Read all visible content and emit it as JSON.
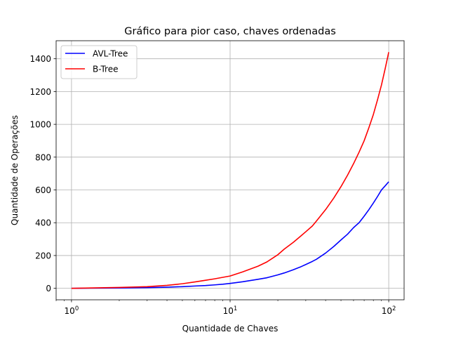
{
  "chart_data": {
    "type": "line",
    "title": "Gráfico para pior caso, chaves ordenadas",
    "xlabel": "Quantidade de Chaves",
    "ylabel": "Quantidade de Operações",
    "xscale": "log",
    "xlim": [
      0.8,
      125
    ],
    "ylim": [
      -70,
      1510
    ],
    "grid": true,
    "legend_position": "top-left",
    "x_ticks": [
      {
        "value": 1,
        "base": "10",
        "exp": "0"
      },
      {
        "value": 10,
        "base": "10",
        "exp": "1"
      },
      {
        "value": 100,
        "base": "10",
        "exp": "2"
      }
    ],
    "y_ticks": [
      0,
      200,
      400,
      600,
      800,
      1000,
      1200,
      1400
    ],
    "x": [
      1,
      2,
      3,
      4,
      5,
      6,
      7,
      8,
      9,
      10,
      12,
      15,
      17,
      20,
      22,
      25,
      28,
      30,
      33,
      35,
      40,
      45,
      50,
      55,
      60,
      65,
      70,
      75,
      80,
      85,
      90,
      95,
      100
    ],
    "series": [
      {
        "name": "AVL-Tree",
        "color": "#0000ff",
        "values": [
          0,
          2,
          4,
          7,
          10,
          14,
          17,
          21,
          25,
          30,
          40,
          55,
          64,
          82,
          94,
          113,
          132,
          145,
          164,
          177,
          215,
          255,
          295,
          330,
          370,
          400,
          440,
          480,
          520,
          560,
          600,
          625,
          650
        ]
      },
      {
        "name": "B-Tree",
        "color": "#ff0000",
        "values": [
          0,
          5,
          10,
          18,
          28,
          39,
          49,
          58,
          67,
          75,
          100,
          135,
          160,
          205,
          240,
          280,
          320,
          345,
          380,
          410,
          480,
          550,
          620,
          690,
          760,
          830,
          900,
          980,
          1060,
          1150,
          1240,
          1340,
          1440
        ]
      }
    ]
  }
}
